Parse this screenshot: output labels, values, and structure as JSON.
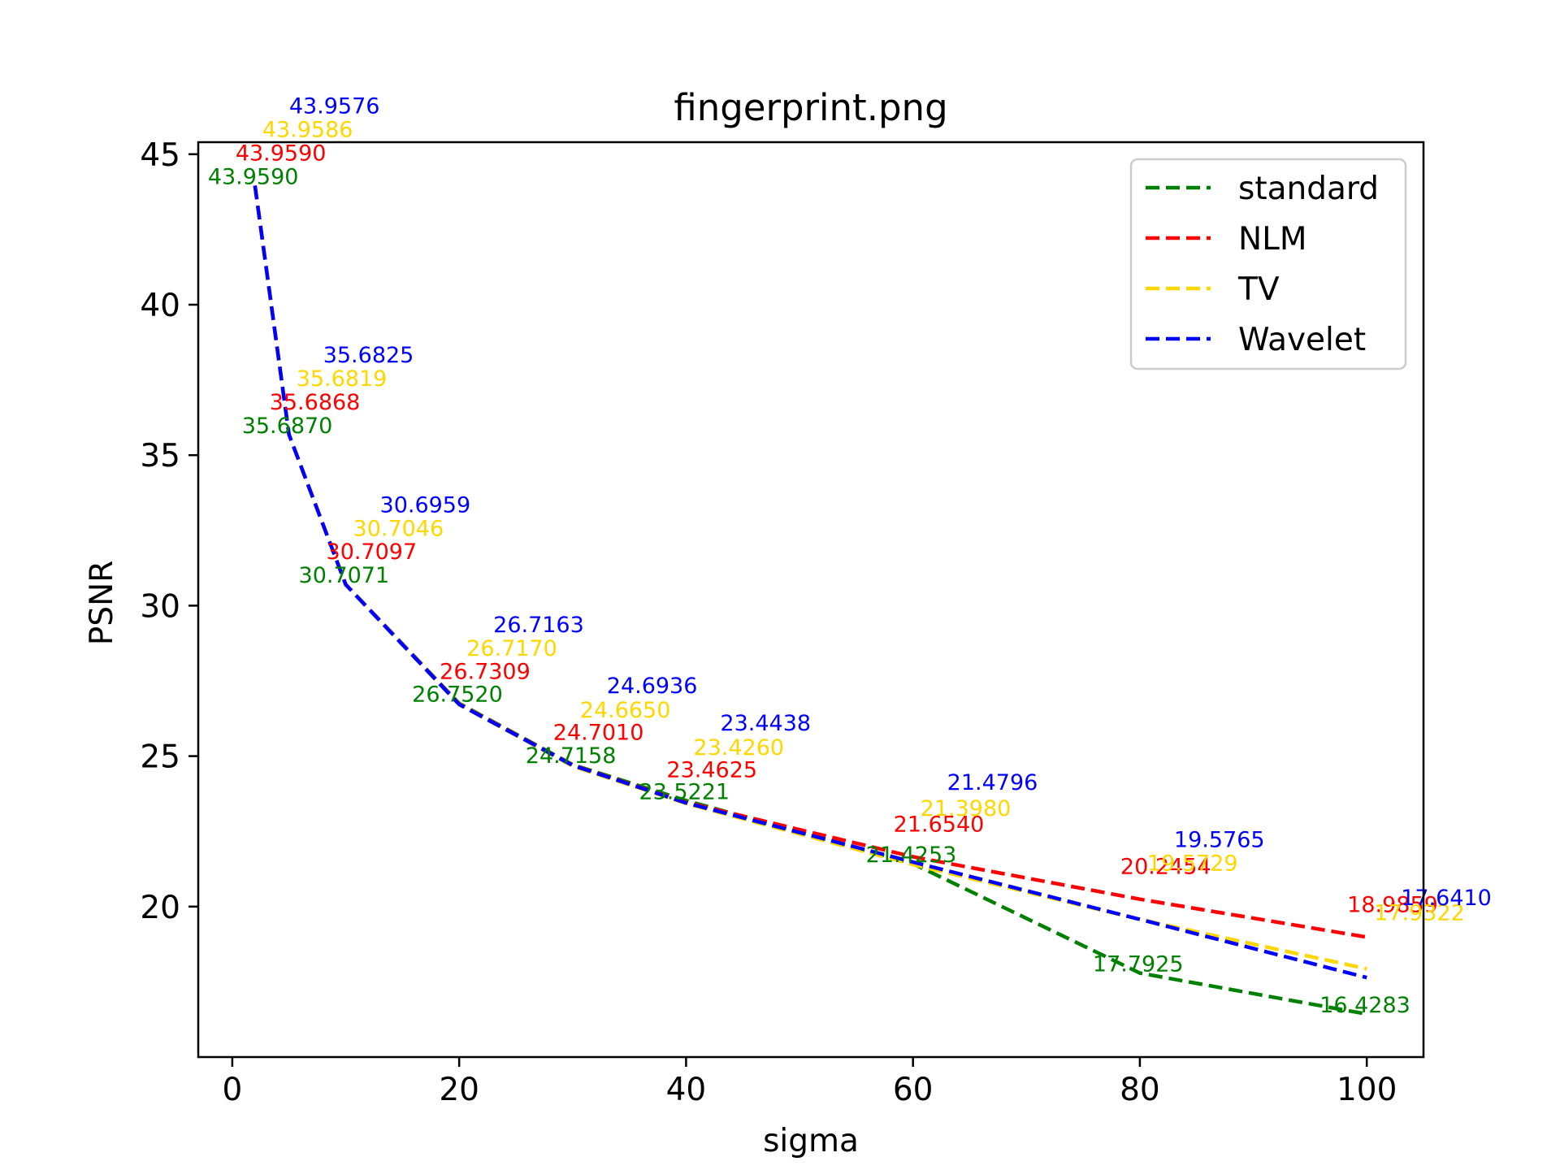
{
  "chart_data": {
    "type": "line",
    "title": "fingerprint.png",
    "xlabel": "sigma",
    "ylabel": "PSNR",
    "xlim": [
      -3,
      105
    ],
    "ylim": [
      15,
      45.4
    ],
    "xticks": [
      0,
      20,
      40,
      60,
      80,
      100
    ],
    "yticks": [
      20,
      25,
      30,
      35,
      40,
      45
    ],
    "grid": false,
    "legend_position": "top-right",
    "x": [
      2,
      5,
      10,
      20,
      30,
      40,
      60,
      80,
      100
    ],
    "series": [
      {
        "name": "standard",
        "color": "#008000",
        "line_style": "dashed",
        "values": [
          43.959,
          35.687,
          30.7071,
          26.752,
          24.7158,
          23.5221,
          21.4253,
          17.7925,
          16.4283
        ],
        "labels": [
          "43.9590",
          "35.6870",
          "30.7071",
          "26.7520",
          "24.7158",
          "23.5221",
          "21.4253",
          "17.7925",
          "16.4283"
        ]
      },
      {
        "name": "NLM",
        "color": "#ff0000",
        "line_style": "dashed",
        "values": [
          43.959,
          35.6868,
          30.7097,
          26.7309,
          24.701,
          23.4625,
          21.654,
          20.2454,
          18.9859
        ],
        "labels": [
          "43.9590",
          "35.6868",
          "30.7097",
          "26.7309",
          "24.7010",
          "23.4625",
          "21.6540",
          "20.2454",
          "18.9859"
        ]
      },
      {
        "name": "TV",
        "color": "#ffd700",
        "line_style": "dashed",
        "values": [
          43.9586,
          35.6819,
          30.7046,
          26.717,
          24.665,
          23.426,
          21.398,
          19.5729,
          17.9322
        ],
        "labels": [
          "43.9586",
          "35.6819",
          "30.7046",
          "26.7170",
          "24.6650",
          "23.4260",
          "21.3980",
          "19.5729",
          "17.9322"
        ]
      },
      {
        "name": "Wavelet",
        "color": "#0000ff",
        "line_style": "dashed",
        "values": [
          43.9576,
          35.6825,
          30.6959,
          26.7163,
          24.6936,
          23.4438,
          21.4796,
          19.5765,
          17.641
        ],
        "labels": [
          "43.9576",
          "35.6825",
          "30.6959",
          "26.7163",
          "24.6936",
          "23.4438",
          "21.4796",
          "19.5765",
          "17.6410"
        ]
      }
    ]
  }
}
